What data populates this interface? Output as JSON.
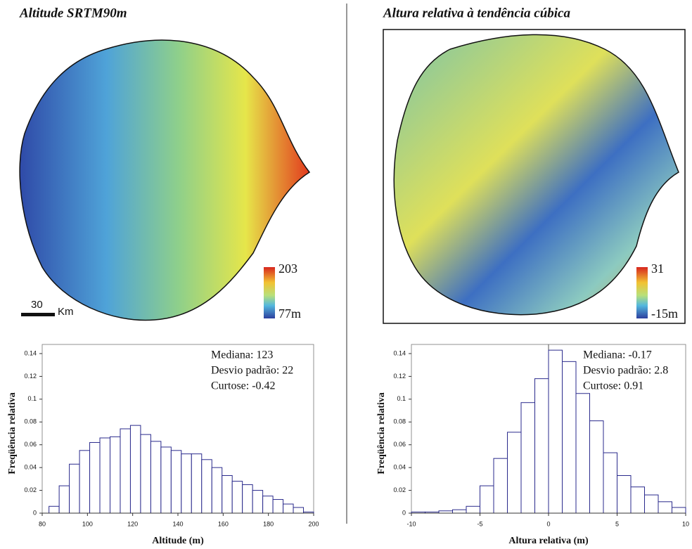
{
  "maps": [
    {
      "title": "Altitude SRTM90m",
      "legend_max": "203",
      "legend_min": "77m",
      "scale_value": "30",
      "scale_unit": "Km"
    },
    {
      "title": "Altura relativa à tendência cúbica",
      "legend_max": "31",
      "legend_min": "-15m"
    }
  ],
  "chart_data": [
    {
      "type": "histogram",
      "xlabel": "Altitude (m)",
      "ylabel": "Freqüência relativa",
      "annotations": [
        "Mediana: 123",
        "Desvio padrão: 22",
        "Curtose: -0.42"
      ],
      "bins": [
        83,
        87.5,
        92,
        96.5,
        101,
        105.5,
        110,
        114.5,
        119,
        123.5,
        128,
        132.5,
        137,
        141.5,
        146,
        150.5,
        155,
        159.5,
        164,
        168.5,
        173,
        177.5,
        182,
        186.5,
        191,
        195.5,
        200
      ],
      "values": [
        0.006,
        0.024,
        0.043,
        0.055,
        0.062,
        0.066,
        0.067,
        0.074,
        0.077,
        0.069,
        0.063,
        0.058,
        0.055,
        0.052,
        0.052,
        0.047,
        0.04,
        0.033,
        0.028,
        0.025,
        0.02,
        0.015,
        0.012,
        0.008,
        0.005,
        0.001
      ],
      "color": "#2a2a8c",
      "xlim": [
        80,
        200
      ],
      "xticks": [
        80,
        100,
        120,
        140,
        160,
        180,
        200
      ],
      "ylim": [
        0,
        0.14
      ],
      "yticks": [
        0,
        0.02,
        0.04,
        0.06,
        0.08,
        0.1,
        0.12,
        0.14
      ]
    },
    {
      "type": "histogram",
      "xlabel": "Altura relativa (m)",
      "ylabel": "Freqüência relativa",
      "annotations": [
        "Mediana: -0.17",
        "Desvio padrão: 2.8",
        "Curtose: 0.91"
      ],
      "bins": [
        -10,
        -9,
        -8,
        -7,
        -6,
        -5,
        -4,
        -3,
        -2,
        -1,
        0,
        1,
        2,
        3,
        4,
        5,
        6,
        7,
        8,
        9,
        10
      ],
      "values": [
        0.001,
        0.001,
        0.002,
        0.003,
        0.006,
        0.024,
        0.048,
        0.071,
        0.097,
        0.118,
        0.143,
        0.133,
        0.105,
        0.081,
        0.053,
        0.033,
        0.023,
        0.016,
        0.01,
        0.005
      ],
      "color": "#2a2a8c",
      "xlim": [
        -10,
        10
      ],
      "xticks": [
        -10,
        -5,
        0,
        5,
        10
      ],
      "ylim": [
        0,
        0.14
      ],
      "yticks": [
        0,
        0.02,
        0.04,
        0.06,
        0.08,
        0.1,
        0.12,
        0.14
      ]
    }
  ]
}
